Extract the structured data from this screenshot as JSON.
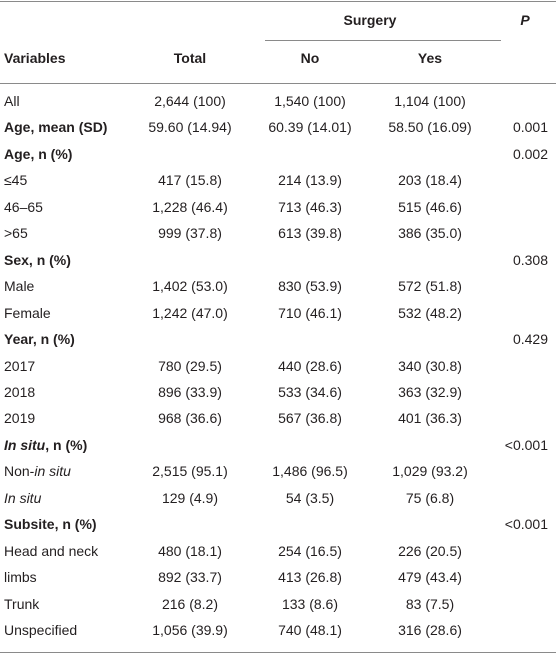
{
  "table": {
    "header": {
      "group": "Surgery",
      "p": "P",
      "columns": [
        "Variables",
        "Total",
        "No",
        "Yes"
      ]
    },
    "rows": [
      [
        "All",
        "2,644 (100)",
        "1,540 (100)",
        "1,104 (100)",
        null
      ],
      [
        "Age, mean (SD)",
        "59.60 (14.94)",
        "60.39 (14.01)",
        "58.50 (16.09)",
        "0.001"
      ],
      [
        "Age, n (%)",
        null,
        null,
        null,
        "0.002"
      ],
      [
        "≤45",
        "417 (15.8)",
        "214 (13.9)",
        "203 (18.4)",
        null
      ],
      [
        "46–65",
        "1,228 (46.4)",
        "713 (46.3)",
        "515 (46.6)",
        null
      ],
      [
        ">65",
        "999 (37.8)",
        "613 (39.8)",
        "386 (35.0)",
        null
      ],
      [
        "Sex, n (%)",
        null,
        null,
        null,
        "0.308"
      ],
      [
        "Male",
        "1,402 (53.0)",
        "830 (53.9)",
        "572 (51.8)",
        null
      ],
      [
        "Female",
        "1,242 (47.0)",
        "710 (46.1)",
        "532 (48.2)",
        null
      ],
      [
        "Year, n (%)",
        null,
        null,
        null,
        "0.429"
      ],
      [
        "2017",
        "780 (29.5)",
        "440 (28.6)",
        "340 (30.8)",
        null
      ],
      [
        "2018",
        "896 (33.9)",
        "533 (34.6)",
        "363 (32.9)",
        null
      ],
      [
        "2019",
        "968 (36.6)",
        "567 (36.8)",
        "401 (36.3)",
        null
      ],
      [
        [
          "In situ",
          ", n (%)"
        ],
        null,
        null,
        null,
        "<0.001"
      ],
      [
        [
          "Non-",
          "in situ"
        ],
        "2,515 (95.1)",
        "1,486 (96.5)",
        "1,029 (93.2)",
        null
      ],
      [
        [
          "In situ"
        ],
        "129 (4.9)",
        "54 (3.5)",
        "75 (6.8)",
        null
      ],
      [
        "Subsite, n (%)",
        null,
        null,
        null,
        "<0.001"
      ],
      [
        "Head and neck",
        "480 (18.1)",
        "254 (16.5)",
        "226 (20.5)",
        null
      ],
      [
        "limbs",
        "892 (33.7)",
        "413 (26.8)",
        "479 (43.4)",
        null
      ],
      [
        "Trunk",
        "216 (8.2)",
        "133 (8.6)",
        "83 (7.5)",
        null
      ],
      [
        "Unspecified",
        "1,056 (39.9)",
        "740 (48.1)",
        "316 (28.6)",
        null
      ]
    ]
  }
}
